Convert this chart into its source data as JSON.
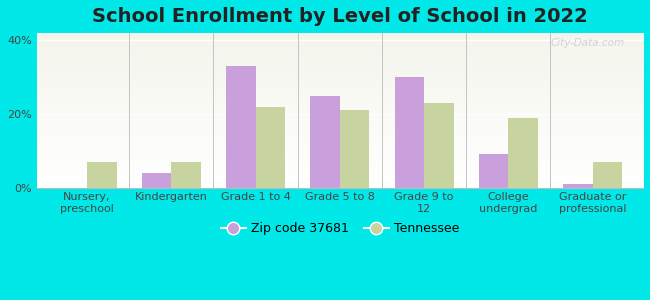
{
  "title": "School Enrollment by Level of School in 2022",
  "categories": [
    "Nursery,\npreschool",
    "Kindergarten",
    "Grade 1 to 4",
    "Grade 5 to 8",
    "Grade 9 to\n12",
    "College\nundergrad",
    "Graduate or\nprofessional"
  ],
  "zip_values": [
    0,
    4,
    33,
    25,
    30,
    9,
    1
  ],
  "tn_values": [
    7,
    7,
    22,
    21,
    23,
    19,
    7
  ],
  "zip_color": "#c9a0dc",
  "tn_color": "#c8d4a0",
  "background_color": "#00e8e8",
  "ylim": [
    0,
    42
  ],
  "yticks": [
    0,
    20,
    40
  ],
  "ytick_labels": [
    "0%",
    "20%",
    "40%"
  ],
  "legend_zip_label": "Zip code 37681",
  "legend_tn_label": "Tennessee",
  "bar_width": 0.35,
  "title_fontsize": 14,
  "tick_fontsize": 8,
  "legend_fontsize": 9,
  "watermark": "City-Data.com",
  "separator_color": "#bbbbbb",
  "plot_bg_left_top": "#e8f5e9",
  "plot_bg_right_bottom": "#f5fff5"
}
